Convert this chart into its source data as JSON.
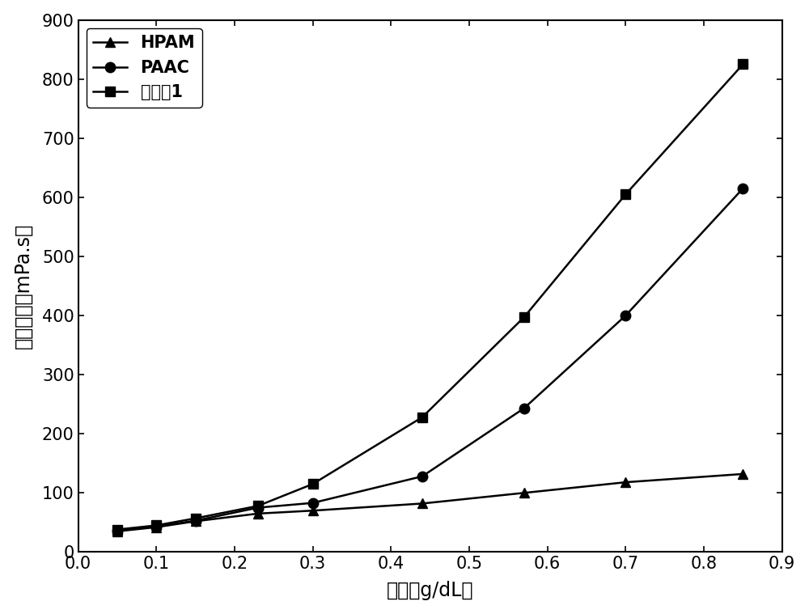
{
  "HPAM": {
    "x": [
      0.05,
      0.1,
      0.15,
      0.23,
      0.3,
      0.44,
      0.57,
      0.7,
      0.85
    ],
    "y": [
      35,
      42,
      52,
      65,
      70,
      82,
      100,
      118,
      132
    ],
    "marker": "^",
    "label": "HPAM"
  },
  "PAAC": {
    "x": [
      0.05,
      0.1,
      0.15,
      0.23,
      0.3,
      0.44,
      0.57,
      0.7,
      0.85
    ],
    "y": [
      36,
      43,
      53,
      75,
      83,
      128,
      243,
      400,
      615
    ],
    "marker": "o",
    "label": "PAAC"
  },
  "example1": {
    "x": [
      0.05,
      0.1,
      0.15,
      0.23,
      0.3,
      0.44,
      0.57,
      0.7,
      0.85
    ],
    "y": [
      38,
      45,
      57,
      78,
      115,
      228,
      397,
      605,
      825
    ],
    "marker": "s",
    "label": "实施奡1"
  },
  "line_color": "#000000",
  "marker_fill": "#000000",
  "marker_size": 9,
  "line_width": 1.8,
  "xlabel_cn": "浓度",
  "xlabel_unit": "g/dL",
  "ylabel_cn": "表观粘度",
  "ylabel_unit": "mPa.s",
  "xlim": [
    0.0,
    0.9
  ],
  "ylim": [
    0,
    900
  ],
  "yticks": [
    0,
    100,
    200,
    300,
    400,
    500,
    600,
    700,
    800,
    900
  ],
  "xticks": [
    0.0,
    0.1,
    0.2,
    0.3,
    0.4,
    0.5,
    0.6,
    0.7,
    0.8,
    0.9
  ],
  "background_color": "#ffffff",
  "legend_fontsize": 15,
  "axis_fontsize": 17,
  "tick_fontsize": 15
}
